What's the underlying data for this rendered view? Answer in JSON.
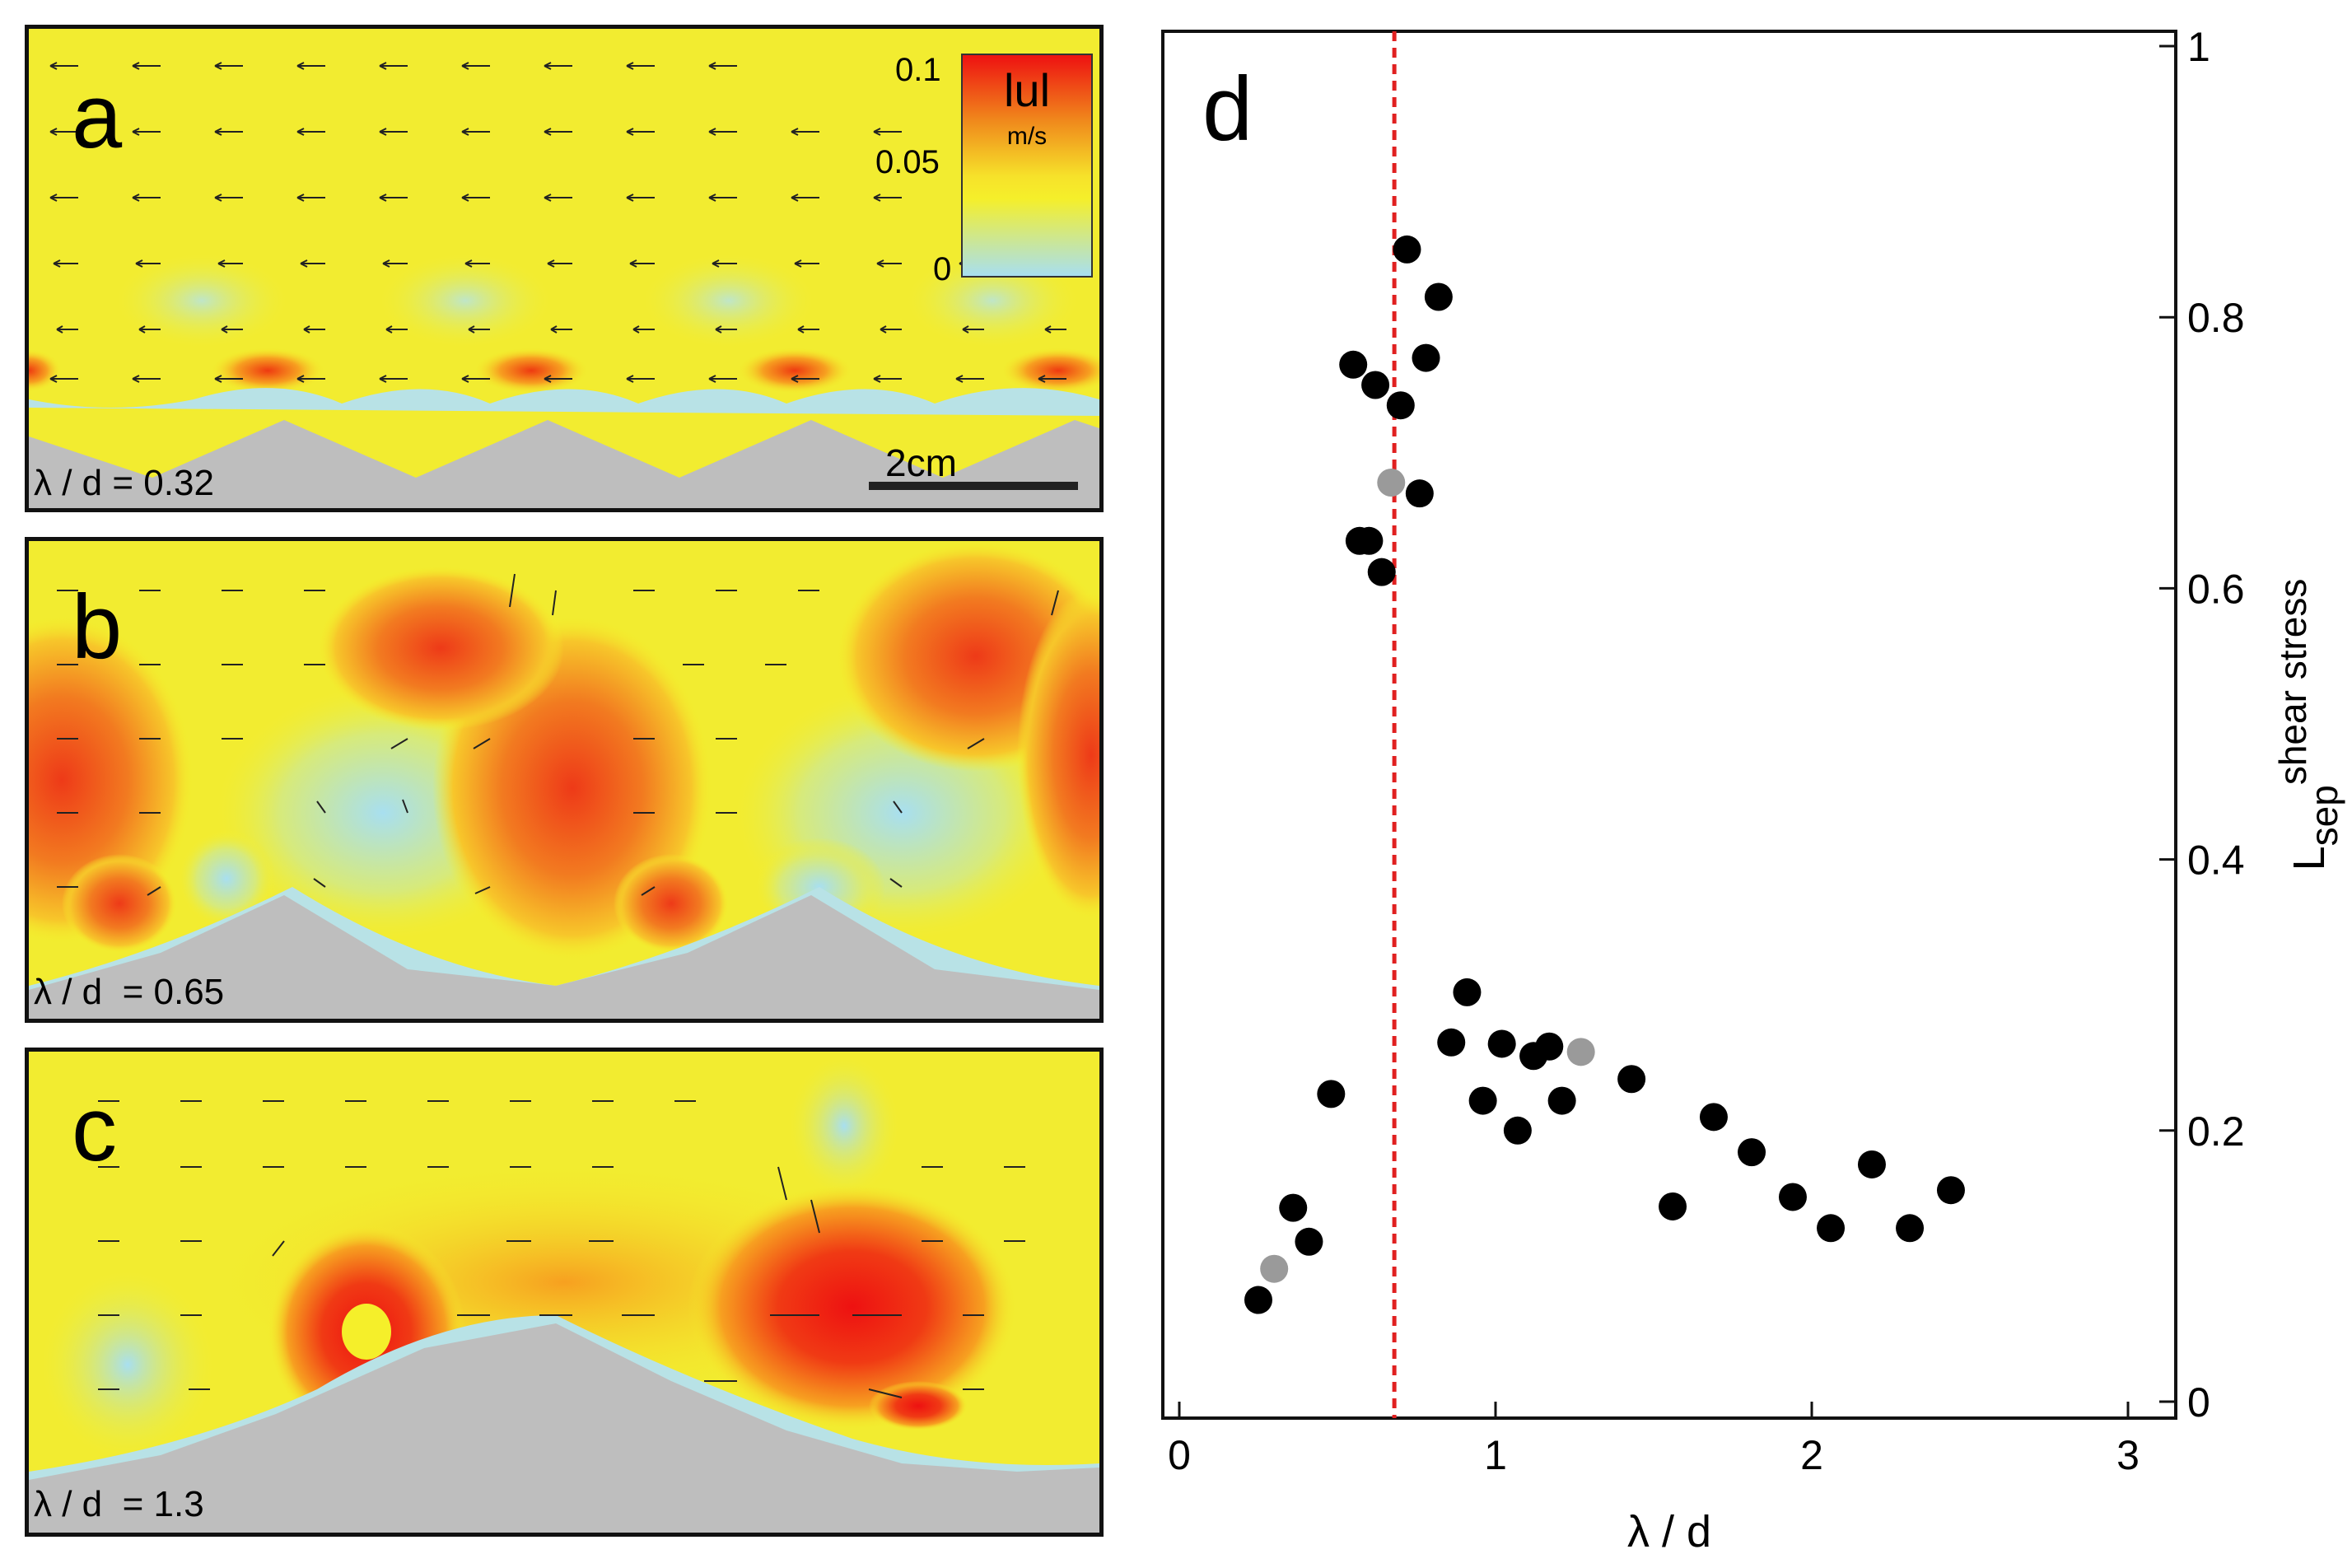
{
  "panels": [
    {
      "label": "a",
      "ratio": "λ / d = 0.32"
    },
    {
      "label": "b",
      "ratio": "λ / d  = 0.65"
    },
    {
      "label": "c",
      "ratio": "λ / d  = 1.3"
    }
  ],
  "colorbar": {
    "title": "lul",
    "unit": "m/s",
    "ticks": [
      "0.1",
      "0.05",
      "0"
    ],
    "colors": [
      "#ee1111",
      "#f7a020",
      "#f5ef2a",
      "#a8dff0"
    ]
  },
  "scalebar": {
    "label": "2cm"
  },
  "chart_data": {
    "type": "scatter",
    "panel_label": "d",
    "xlabel": "λ / d",
    "ylabel": "L",
    "ylabel_sub": "sep",
    "ylabel_sup": "shear stress",
    "xlim": [
      0,
      3
    ],
    "ylim": [
      0,
      1
    ],
    "xticks": [
      "0",
      "1",
      "2",
      "3"
    ],
    "yticks": [
      "0",
      "0.2",
      "0.4",
      "0.6",
      "0.8",
      "1"
    ],
    "ytick_values": [
      0,
      0.2,
      0.4,
      0.6,
      0.8,
      1
    ],
    "vline_x": 0.68,
    "vline_color": "#e02020",
    "series": [
      {
        "color": "#000000",
        "points": [
          [
            0.72,
            0.85
          ],
          [
            0.82,
            0.815
          ],
          [
            0.55,
            0.765
          ],
          [
            0.62,
            0.75
          ],
          [
            0.78,
            0.77
          ],
          [
            0.7,
            0.735
          ],
          [
            0.76,
            0.67
          ],
          [
            0.57,
            0.635
          ],
          [
            0.6,
            0.635
          ],
          [
            0.64,
            0.612
          ],
          [
            0.25,
            0.075
          ],
          [
            0.36,
            0.143
          ],
          [
            0.41,
            0.118
          ],
          [
            0.48,
            0.227
          ],
          [
            0.91,
            0.302
          ],
          [
            0.86,
            0.265
          ],
          [
            0.96,
            0.222
          ],
          [
            1.02,
            0.264
          ],
          [
            1.07,
            0.2
          ],
          [
            1.12,
            0.255
          ],
          [
            1.17,
            0.262
          ],
          [
            1.21,
            0.222
          ],
          [
            1.43,
            0.238
          ],
          [
            1.56,
            0.144
          ],
          [
            1.69,
            0.21
          ],
          [
            1.81,
            0.184
          ],
          [
            1.94,
            0.151
          ],
          [
            2.06,
            0.128
          ],
          [
            2.19,
            0.175
          ],
          [
            2.31,
            0.128
          ],
          [
            2.44,
            0.156
          ]
        ]
      },
      {
        "color": "#9a9a9a",
        "points": [
          [
            0.67,
            0.678
          ],
          [
            0.3,
            0.098
          ],
          [
            1.27,
            0.258
          ]
        ]
      }
    ]
  }
}
